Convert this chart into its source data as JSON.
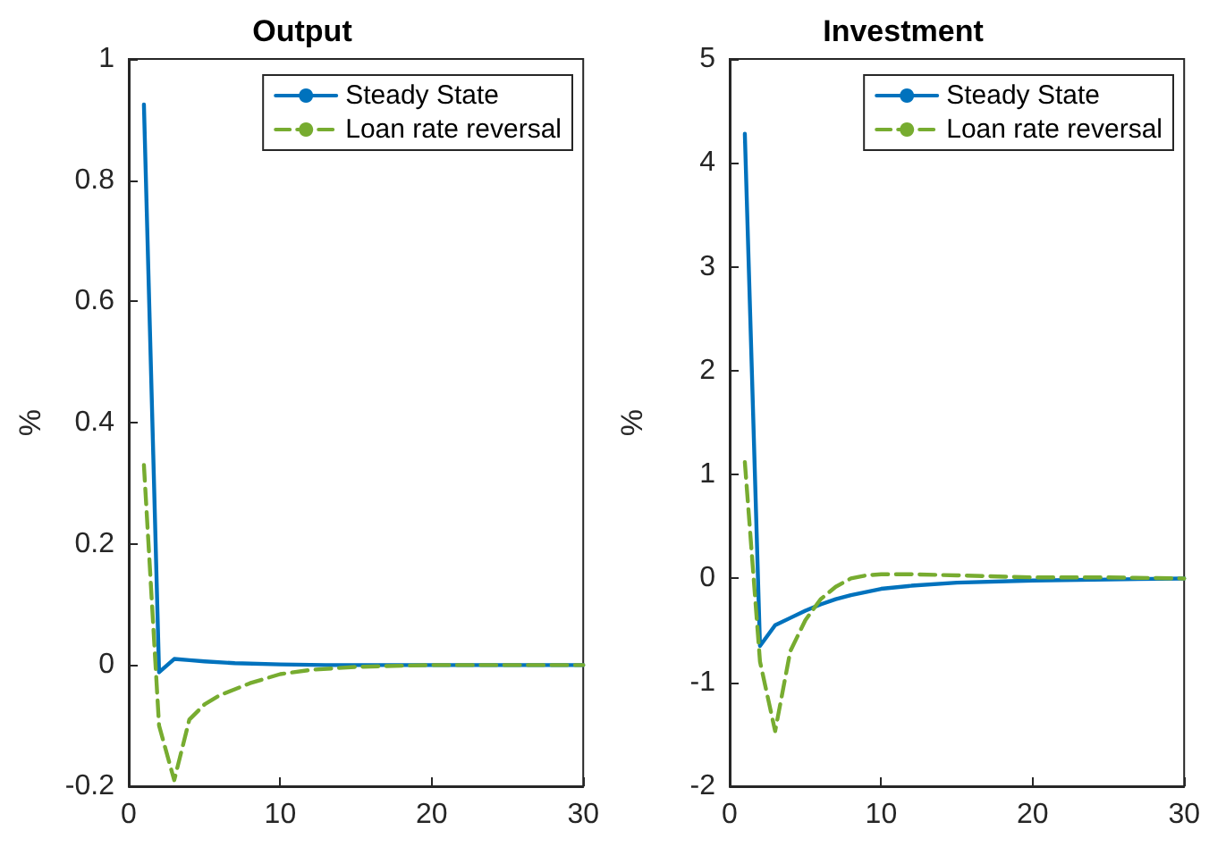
{
  "chart_data": [
    {
      "type": "line",
      "title": "Output",
      "ylabel": "%",
      "xlim": [
        0,
        30
      ],
      "xticks": [
        0,
        10,
        20,
        30
      ],
      "ylim": [
        -0.2,
        1
      ],
      "yticks": [
        -0.2,
        0,
        0.2,
        0.4,
        0.6,
        0.8,
        1
      ],
      "grid": false,
      "legend": "top right",
      "marker": "none",
      "series": [
        {
          "name": "Steady State",
          "color": "#0072bd",
          "line_style": "solid",
          "x": [
            1,
            2,
            3,
            4,
            5,
            7,
            10,
            13,
            20,
            30
          ],
          "values": [
            0.925,
            -0.012,
            0.01,
            0.008,
            0.006,
            0.003,
            0.001,
            0,
            0,
            0
          ]
        },
        {
          "name": "Loan rate reversal",
          "color": "#77ac30",
          "line_style": "dashed",
          "x": [
            1,
            2,
            3,
            4,
            5,
            6,
            7,
            8,
            10,
            12,
            15,
            20,
            30
          ],
          "values": [
            0.33,
            -0.1,
            -0.19,
            -0.09,
            -0.065,
            -0.05,
            -0.04,
            -0.03,
            -0.015,
            -0.008,
            -0.003,
            0,
            0
          ]
        }
      ]
    },
    {
      "type": "line",
      "title": "Investment",
      "ylabel": "%",
      "xlim": [
        0,
        30
      ],
      "xticks": [
        0,
        10,
        20,
        30
      ],
      "ylim": [
        -2,
        5
      ],
      "yticks": [
        -2,
        -1,
        0,
        1,
        2,
        3,
        4,
        5
      ],
      "grid": false,
      "legend": "top right",
      "marker": "none",
      "series": [
        {
          "name": "Steady State",
          "color": "#0072bd",
          "line_style": "solid",
          "x": [
            1,
            2,
            3,
            4,
            5,
            6,
            7,
            8,
            10,
            12,
            15,
            20,
            25,
            30
          ],
          "values": [
            4.28,
            -0.65,
            -0.45,
            -0.38,
            -0.31,
            -0.25,
            -0.2,
            -0.16,
            -0.1,
            -0.07,
            -0.04,
            -0.02,
            -0.01,
            0
          ]
        },
        {
          "name": "Loan rate reversal",
          "color": "#77ac30",
          "line_style": "dashed",
          "x": [
            1,
            2,
            3,
            4,
            5,
            6,
            7,
            8,
            9,
            10,
            12,
            15,
            20,
            25,
            30
          ],
          "values": [
            1.12,
            -0.8,
            -1.47,
            -0.7,
            -0.4,
            -0.2,
            -0.08,
            0,
            0.03,
            0.04,
            0.04,
            0.03,
            0.01,
            0.01,
            0
          ]
        }
      ]
    }
  ]
}
